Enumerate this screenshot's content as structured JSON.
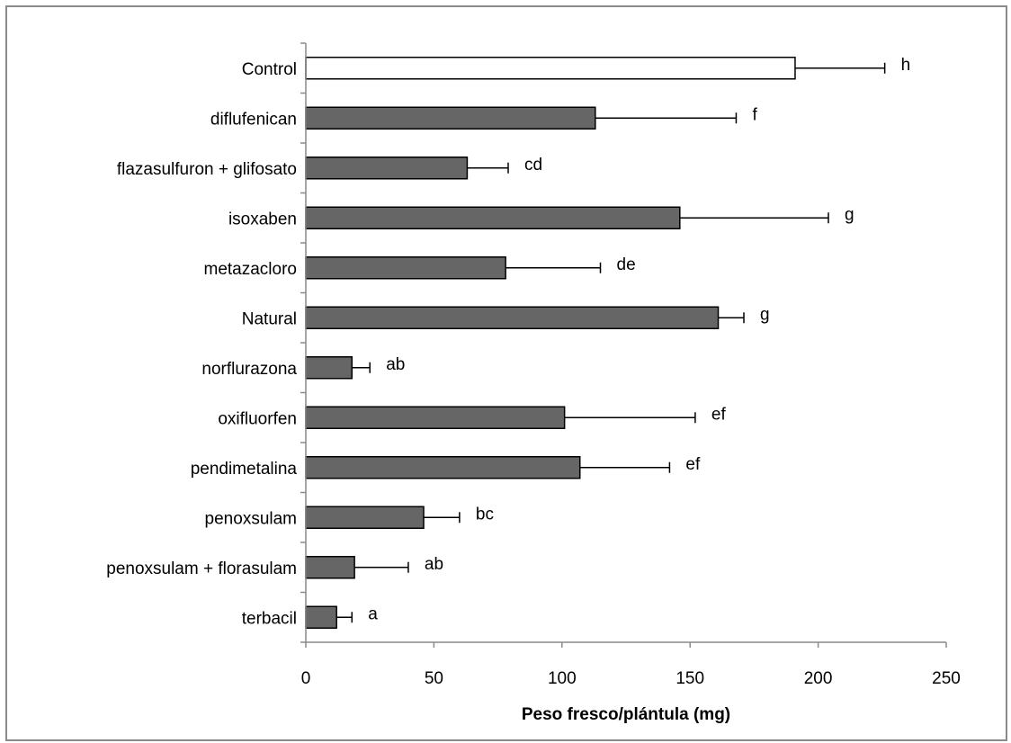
{
  "chart_data": {
    "type": "bar",
    "orientation": "horizontal",
    "categories": [
      "Control",
      "diflufenican",
      "flazasulfuron + glifosato",
      "isoxaben",
      "metazacloro",
      "Natural",
      "norflurazona",
      "oxifluorfen",
      "pendimetalina",
      "penoxsulam",
      "penoxsulam + florasulam",
      "terbacil"
    ],
    "values": [
      191,
      113,
      63,
      146,
      78,
      161,
      18,
      101,
      107,
      46,
      19,
      12
    ],
    "error_bars": [
      35,
      55,
      16,
      58,
      37,
      10,
      7,
      51,
      35,
      14,
      21,
      6
    ],
    "significance_letters": [
      "h",
      "f",
      "cd",
      "g",
      "de",
      "g",
      "ab",
      "ef",
      "ef",
      "bc",
      "ab",
      "a"
    ],
    "bar_colors": [
      "#ffffff",
      "#666666",
      "#666666",
      "#666666",
      "#666666",
      "#666666",
      "#666666",
      "#666666",
      "#666666",
      "#666666",
      "#666666",
      "#666666"
    ],
    "xlabel": "Peso fresco/plántula (mg)",
    "xlim": [
      0,
      250
    ],
    "xticks": [
      0,
      50,
      100,
      150,
      200,
      250
    ],
    "grid": false,
    "legend": "none"
  }
}
